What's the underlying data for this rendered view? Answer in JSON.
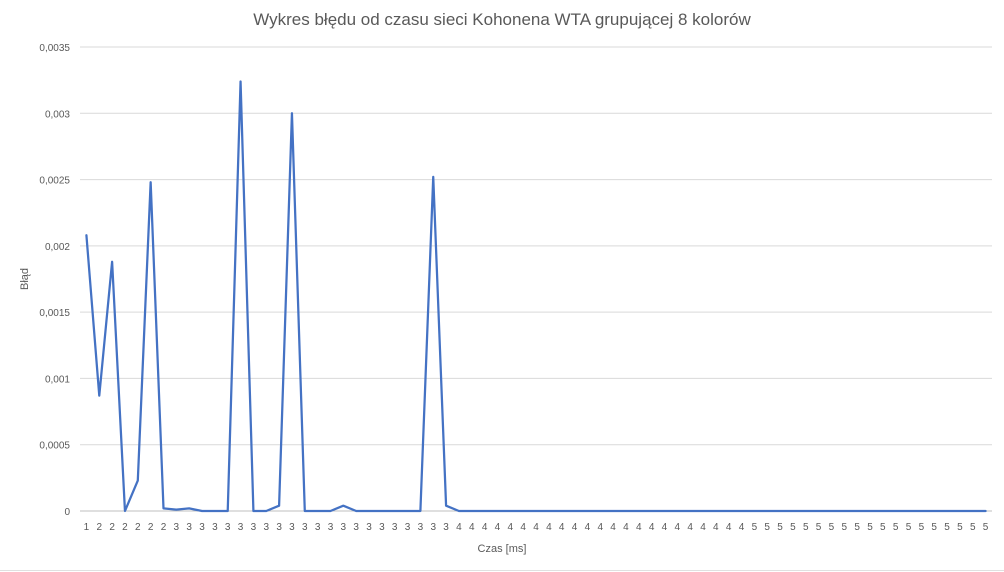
{
  "chart_data": {
    "type": "line",
    "title": "Wykres błędu od czasu sieci Kohonena WTA grupującej 8 kolorów",
    "xlabel": "Czas [ms]",
    "ylabel": "Błąd",
    "ylim": [
      0,
      0.0035
    ],
    "yticks": [
      "0",
      "0,0005",
      "0,001",
      "0,0015",
      "0,002",
      "0,0025",
      "0,003",
      "0,0035"
    ],
    "grid": true,
    "legend": "none",
    "line_color": "#4472c4",
    "categories": [
      "1",
      "2",
      "2",
      "2",
      "2",
      "2",
      "2",
      "3",
      "3",
      "3",
      "3",
      "3",
      "3",
      "3",
      "3",
      "3",
      "3",
      "3",
      "3",
      "3",
      "3",
      "3",
      "3",
      "3",
      "3",
      "3",
      "3",
      "3",
      "3",
      "4",
      "4",
      "4",
      "4",
      "4",
      "4",
      "4",
      "4",
      "4",
      "4",
      "4",
      "4",
      "4",
      "4",
      "4",
      "4",
      "4",
      "4",
      "4",
      "4",
      "4",
      "4",
      "4",
      "5",
      "5",
      "5",
      "5",
      "5",
      "5",
      "5",
      "5",
      "5",
      "5",
      "5",
      "5",
      "5",
      "5",
      "5",
      "5",
      "5",
      "5",
      "5"
    ],
    "values": [
      0.00208,
      0.00087,
      0.00188,
      0.0,
      0.00023,
      0.00248,
      2e-05,
      1e-05,
      2e-05,
      0.0,
      0.0,
      0.0,
      0.00324,
      0.0,
      0.0,
      4e-05,
      0.003,
      0.0,
      0.0,
      0.0,
      4e-05,
      0.0,
      0.0,
      0.0,
      0.0,
      0.0,
      0.0,
      0.00252,
      4e-05,
      0.0,
      0.0,
      0.0,
      0.0,
      0.0,
      0.0,
      0.0,
      0.0,
      0.0,
      0.0,
      0.0,
      0.0,
      0.0,
      0.0,
      0.0,
      0.0,
      0.0,
      0.0,
      0.0,
      0.0,
      0.0,
      0.0,
      0.0,
      0.0,
      0.0,
      0.0,
      0.0,
      0.0,
      0.0,
      0.0,
      0.0,
      0.0,
      0.0,
      0.0,
      0.0,
      0.0,
      0.0,
      0.0,
      0.0,
      0.0,
      0.0,
      0.0
    ]
  }
}
